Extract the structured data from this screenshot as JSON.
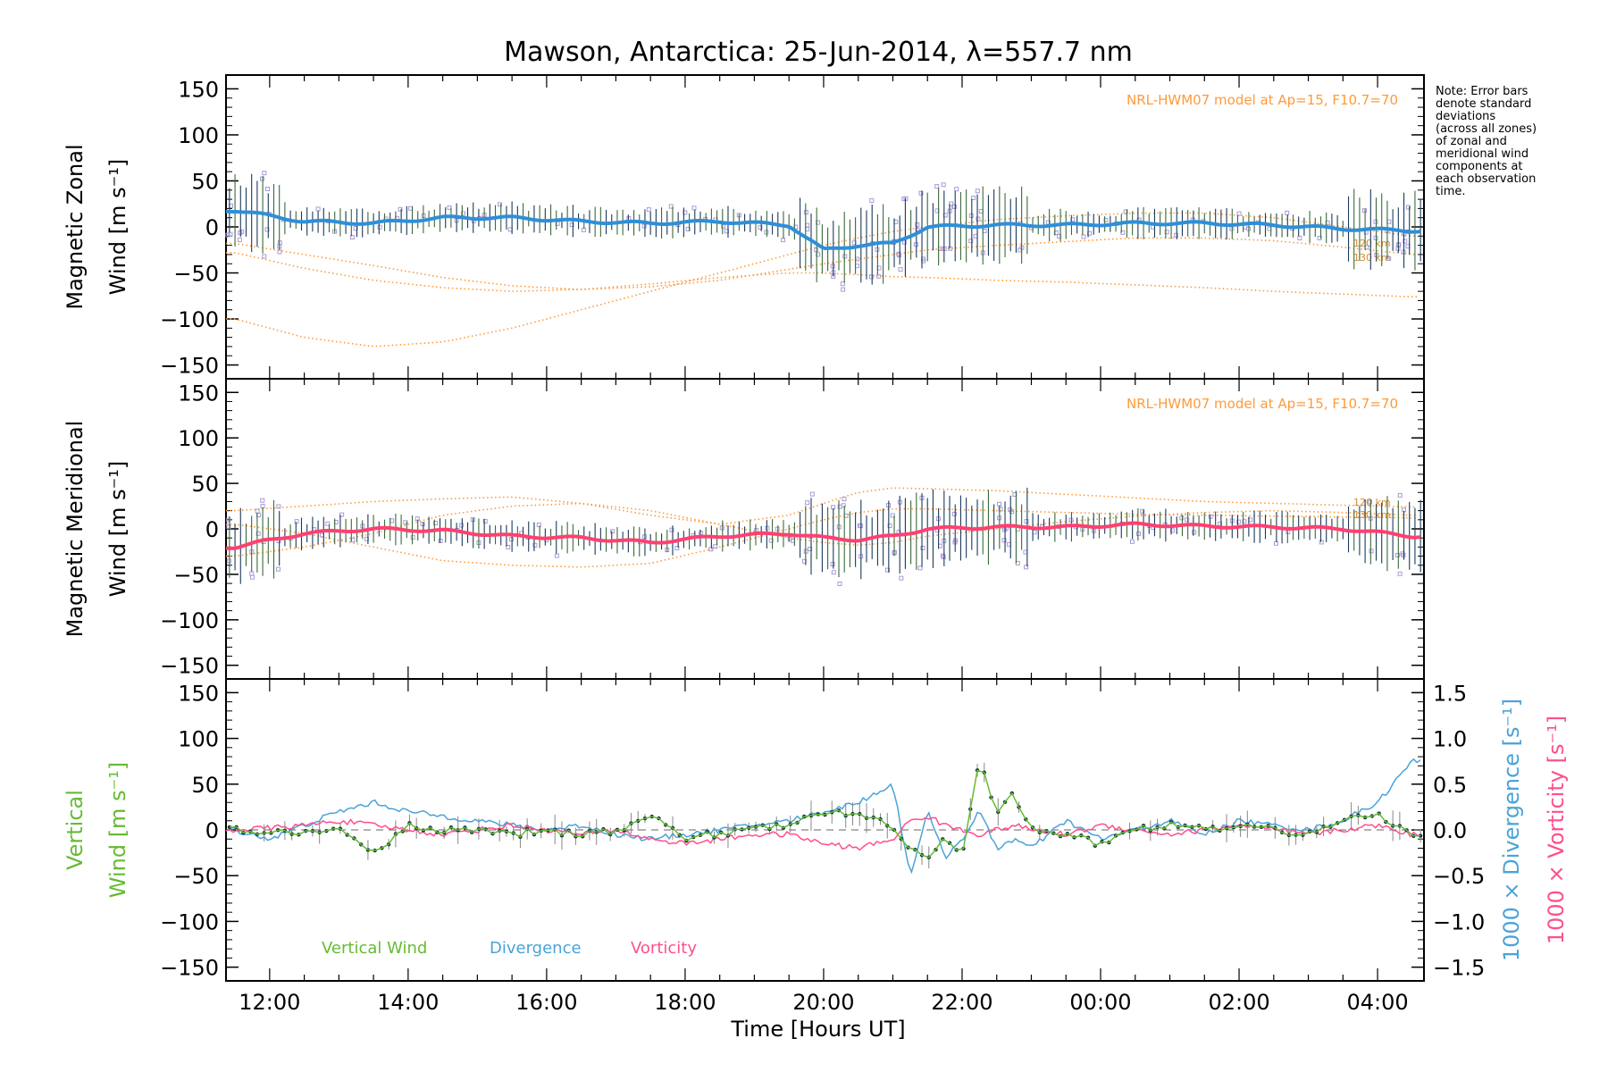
{
  "title": "Mawson, Antarctica: 25-Jun-2014, λ=557.7 nm",
  "note_lines": [
    "Note: Error bars",
    "denote standard",
    "deviations",
    "(across all zones)",
    "of zonal and",
    "meridional wind",
    "components at",
    "each observation",
    "time."
  ],
  "colors": {
    "zonal": "#2e8fd8",
    "meridional": "#ff4070",
    "vertical": "#66bb33",
    "divergence": "#4aa3d8",
    "vorticity": "#ff4f8e",
    "model": "#ff9a3a",
    "scatter": "#a89bd8",
    "errorbar": "#1a3a5a"
  },
  "chart_data": [
    {
      "type": "line",
      "panel": "zonal",
      "ylabel": "Magnetic Zonal Wind [m s⁻¹]",
      "ylabel_lines": [
        "Magnetic Zonal",
        "Wind [m s⁻¹]"
      ],
      "ylim": [
        -165,
        165
      ],
      "yticks": [
        150,
        100,
        50,
        0,
        -50,
        -100,
        -150
      ],
      "model_label": "NRL-HWM07 model at Ap=15, F10.7=70",
      "model_height_labels": [
        "120 km",
        "130 km"
      ],
      "x": [
        11.5,
        12.5,
        13.5,
        14.5,
        15.5,
        16.5,
        17.5,
        18.5,
        19.5,
        20.0,
        20.5,
        21.0,
        21.5,
        22.5,
        23.5,
        0.5,
        1.5,
        2.5,
        3.5,
        4.5
      ],
      "series": [
        {
          "role": "observed",
          "values": [
            18,
            6,
            4,
            10,
            10,
            6,
            4,
            6,
            2,
            -25,
            -20,
            -18,
            0,
            2,
            2,
            4,
            4,
            2,
            -2,
            -4
          ]
        },
        {
          "role": "model",
          "values": [
            -28,
            -45,
            -58,
            -66,
            -70,
            -68,
            -62,
            -55,
            -50,
            -50,
            -52,
            -54,
            -55,
            -58,
            -60,
            -63,
            -66,
            -70,
            -73,
            -76
          ]
        },
        {
          "role": "model",
          "values": [
            -18,
            -30,
            -42,
            -55,
            -64,
            -68,
            -65,
            -58,
            -46,
            -40,
            -35,
            -30,
            -25,
            -20,
            -16,
            -12,
            -12,
            -15,
            -22,
            -30
          ]
        },
        {
          "role": "model",
          "values": [
            -100,
            -120,
            -130,
            -125,
            -110,
            -90,
            -70,
            -50,
            -30,
            -20,
            -12,
            -5,
            0,
            8,
            12,
            15,
            15,
            10,
            0,
            -10
          ]
        }
      ]
    },
    {
      "type": "line",
      "panel": "meridional",
      "ylabel": "Magnetic Meridional Wind [m s⁻¹]",
      "ylabel_lines": [
        "Magnetic Meridional",
        "Wind [m s⁻¹]"
      ],
      "ylim": [
        -165,
        165
      ],
      "yticks": [
        150,
        100,
        50,
        0,
        -50,
        -100,
        -150
      ],
      "model_label": "NRL-HWM07 model at Ap=15, F10.7=70",
      "model_height_labels": [
        "120 km",
        "130 km"
      ],
      "x": [
        11.5,
        12.5,
        13.5,
        14.5,
        15.5,
        16.5,
        17.5,
        18.5,
        19.5,
        20.0,
        20.5,
        21.0,
        21.5,
        22.5,
        23.5,
        0.5,
        1.5,
        2.5,
        3.5,
        4.5
      ],
      "series": [
        {
          "role": "observed",
          "values": [
            -20,
            -5,
            0,
            -2,
            -8,
            -10,
            -15,
            -8,
            -5,
            -10,
            -12,
            -8,
            0,
            2,
            2,
            5,
            3,
            2,
            0,
            -8
          ]
        },
        {
          "role": "model",
          "values": [
            -30,
            -20,
            -5,
            15,
            25,
            28,
            20,
            5,
            -10,
            -15,
            -18,
            -15,
            -8,
            0,
            8,
            14,
            18,
            20,
            18,
            15
          ]
        },
        {
          "role": "model",
          "values": [
            20,
            25,
            30,
            33,
            35,
            28,
            15,
            5,
            15,
            28,
            40,
            45,
            44,
            42,
            38,
            34,
            30,
            28,
            26,
            24
          ]
        },
        {
          "role": "model",
          "values": [
            5,
            -5,
            -20,
            -35,
            -40,
            -42,
            -38,
            -20,
            0,
            10,
            18,
            22,
            22,
            20,
            18,
            16,
            15,
            14,
            13,
            12
          ]
        }
      ]
    },
    {
      "type": "line",
      "panel": "vertical",
      "ylabel": "Vertical Wind [m s⁻¹]",
      "ylabel_lines": [
        "Vertical",
        "Wind [m s⁻¹]"
      ],
      "ylim": [
        -165,
        165
      ],
      "yticks": [
        150,
        100,
        50,
        0,
        -50,
        -100,
        -150
      ],
      "y2label_div": "1000 × Divergence [s⁻¹]",
      "y2label_vort": "1000 × Vorticity [s⁻¹]",
      "y2lim": [
        -1.65,
        1.65
      ],
      "y2ticks": [
        1.5,
        1.0,
        0.5,
        0.0,
        -0.5,
        -1.0,
        -1.5
      ],
      "y2ticklabels": [
        "1.5",
        "1.0",
        "0.5",
        "0.0",
        "−0.5",
        "−1.0",
        "−1.5"
      ],
      "legend": [
        "Vertical Wind",
        "Divergence",
        "Vorticity"
      ],
      "legend_placement": "bottom-left",
      "x": [
        11.5,
        12.0,
        12.5,
        13.0,
        13.5,
        14.0,
        14.5,
        15.0,
        15.5,
        16.0,
        16.5,
        17.0,
        17.5,
        18.0,
        18.5,
        19.0,
        19.5,
        20.0,
        20.5,
        21.0,
        21.25,
        21.5,
        21.75,
        22.0,
        22.25,
        22.5,
        22.75,
        23.0,
        23.5,
        0.0,
        0.5,
        1.0,
        1.5,
        2.0,
        2.5,
        3.0,
        3.5,
        4.0,
        4.5
      ],
      "series": [
        {
          "name": "Vertical Wind",
          "values": [
            0,
            -2,
            -5,
            0,
            -25,
            5,
            0,
            -2,
            -5,
            0,
            -5,
            -2,
            15,
            -8,
            -5,
            0,
            5,
            20,
            15,
            5,
            -20,
            -35,
            -10,
            -25,
            80,
            20,
            40,
            0,
            -5,
            -15,
            0,
            5,
            0,
            5,
            0,
            -5,
            10,
            15,
            -5
          ]
        },
        {
          "name": "Divergence",
          "values": [
            0,
            -0.1,
            0.05,
            0.2,
            0.3,
            0.2,
            0.15,
            0.1,
            0.05,
            0.0,
            0.05,
            -0.05,
            -0.1,
            -0.05,
            0.0,
            0.05,
            0.1,
            0.2,
            0.3,
            0.5,
            -0.5,
            0.2,
            -0.3,
            -0.1,
            0.2,
            -0.2,
            -0.1,
            -0.2,
            0.1,
            -0.1,
            0.0,
            0.1,
            -0.05,
            0.1,
            0.05,
            0.0,
            0.1,
            0.3,
            0.75
          ]
        },
        {
          "name": "Vorticity",
          "values": [
            0,
            0.02,
            0.05,
            0.1,
            0.05,
            0.0,
            -0.05,
            0.0,
            0.05,
            0.0,
            -0.05,
            0.0,
            -0.1,
            -0.15,
            -0.1,
            -0.05,
            -0.05,
            -0.15,
            -0.2,
            -0.1,
            0.1,
            0.15,
            0.05,
            0.0,
            -0.05,
            0.0,
            0.05,
            0.0,
            -0.05,
            0.05,
            0.0,
            -0.05,
            0.0,
            0.05,
            0.0,
            -0.05,
            0.0,
            0.05,
            -0.05
          ]
        }
      ]
    }
  ],
  "xaxis": {
    "xlabel": "Time [Hours UT]",
    "xlim_hours_since_midnight_25jun": [
      11.37,
      28.67
    ],
    "tick_labels": [
      "12:00",
      "14:00",
      "16:00",
      "18:00",
      "20:00",
      "22:00",
      "00:00",
      "02:00",
      "04:00"
    ],
    "tick_hours": [
      12,
      14,
      16,
      18,
      20,
      22,
      24,
      26,
      28
    ]
  }
}
